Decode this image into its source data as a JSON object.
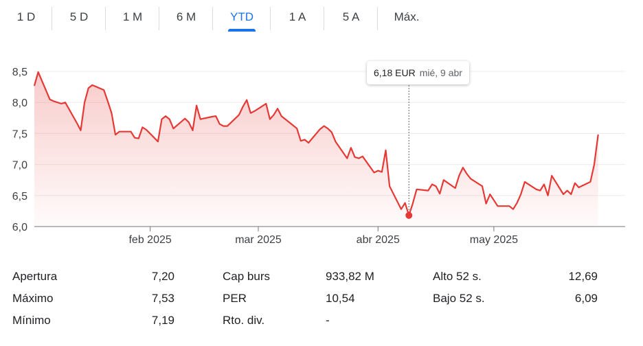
{
  "tabs": [
    {
      "label": "1 D",
      "active": false
    },
    {
      "label": "5 D",
      "active": false
    },
    {
      "label": "1 M",
      "active": false
    },
    {
      "label": "6 M",
      "active": false
    },
    {
      "label": "YTD",
      "active": true
    },
    {
      "label": "1 A",
      "active": false
    },
    {
      "label": "5 A",
      "active": false
    },
    {
      "label": "Máx.",
      "active": false
    }
  ],
  "tooltip": {
    "price": "6,18 EUR",
    "date": "mié, 9 abr"
  },
  "colors": {
    "line": "#e53935",
    "accent": "#1a73e8",
    "grid": "#ececec",
    "axis": "#70757a",
    "text": "#3c4043"
  },
  "stats": {
    "col1": [
      {
        "label": "Apertura",
        "value": "7,20"
      },
      {
        "label": "Máximo",
        "value": "7,53"
      },
      {
        "label": "Mínimo",
        "value": "7,19"
      }
    ],
    "col2": [
      {
        "label": "Cap burs",
        "value": "933,82 M"
      },
      {
        "label": "PER",
        "value": "10,54"
      },
      {
        "label": "Rto. div.",
        "value": "-"
      }
    ],
    "col3": [
      {
        "label": "Alto 52 s.",
        "value": "12,69"
      },
      {
        "label": "Bajo 52 s.",
        "value": "6,09"
      }
    ]
  },
  "chart_data": {
    "type": "area",
    "ylim": [
      6.0,
      8.5
    ],
    "yticks": [
      6.0,
      6.5,
      7.0,
      7.5,
      8.0,
      8.5
    ],
    "ytick_labels": [
      "6,0",
      "6,5",
      "7,0",
      "7,5",
      "8,0",
      "8,5"
    ],
    "xlim": [
      "2025-01-02",
      "2025-06-04"
    ],
    "xticks": [
      {
        "date": "2025-02-01",
        "label": "feb 2025"
      },
      {
        "date": "2025-03-01",
        "label": "mar 2025"
      },
      {
        "date": "2025-04-01",
        "label": "abr 2025"
      },
      {
        "date": "2025-05-01",
        "label": "may 2025"
      }
    ],
    "grid": true,
    "highlight": {
      "date": "2025-04-09",
      "value": 6.18
    },
    "series": [
      {
        "points": [
          [
            "2025-01-02",
            8.27
          ],
          [
            "2025-01-03",
            8.49
          ],
          [
            "2025-01-06",
            8.05
          ],
          [
            "2025-01-07",
            8.02
          ],
          [
            "2025-01-08",
            8.0
          ],
          [
            "2025-01-09",
            7.98
          ],
          [
            "2025-01-10",
            8.0
          ],
          [
            "2025-01-13",
            7.67
          ],
          [
            "2025-01-14",
            7.55
          ],
          [
            "2025-01-15",
            8.0
          ],
          [
            "2025-01-16",
            8.23
          ],
          [
            "2025-01-17",
            8.28
          ],
          [
            "2025-01-20",
            8.2
          ],
          [
            "2025-01-21",
            8.02
          ],
          [
            "2025-01-22",
            7.83
          ],
          [
            "2025-01-23",
            7.48
          ],
          [
            "2025-01-24",
            7.53
          ],
          [
            "2025-01-27",
            7.53
          ],
          [
            "2025-01-28",
            7.43
          ],
          [
            "2025-01-29",
            7.42
          ],
          [
            "2025-01-30",
            7.6
          ],
          [
            "2025-01-31",
            7.56
          ],
          [
            "2025-02-03",
            7.37
          ],
          [
            "2025-02-04",
            7.73
          ],
          [
            "2025-02-05",
            7.78
          ],
          [
            "2025-02-06",
            7.73
          ],
          [
            "2025-02-07",
            7.58
          ],
          [
            "2025-02-10",
            7.74
          ],
          [
            "2025-02-11",
            7.68
          ],
          [
            "2025-02-12",
            7.55
          ],
          [
            "2025-02-13",
            7.95
          ],
          [
            "2025-02-14",
            7.73
          ],
          [
            "2025-02-17",
            7.77
          ],
          [
            "2025-02-18",
            7.78
          ],
          [
            "2025-02-19",
            7.65
          ],
          [
            "2025-02-20",
            7.62
          ],
          [
            "2025-02-21",
            7.62
          ],
          [
            "2025-02-24",
            7.8
          ],
          [
            "2025-02-25",
            7.93
          ],
          [
            "2025-02-26",
            8.04
          ],
          [
            "2025-02-27",
            7.83
          ],
          [
            "2025-02-28",
            7.86
          ],
          [
            "2025-03-03",
            7.98
          ],
          [
            "2025-03-04",
            7.73
          ],
          [
            "2025-03-05",
            7.8
          ],
          [
            "2025-03-06",
            7.9
          ],
          [
            "2025-03-07",
            7.78
          ],
          [
            "2025-03-10",
            7.63
          ],
          [
            "2025-03-11",
            7.58
          ],
          [
            "2025-03-12",
            7.38
          ],
          [
            "2025-03-13",
            7.4
          ],
          [
            "2025-03-14",
            7.35
          ],
          [
            "2025-03-17",
            7.57
          ],
          [
            "2025-03-18",
            7.62
          ],
          [
            "2025-03-19",
            7.58
          ],
          [
            "2025-03-20",
            7.52
          ],
          [
            "2025-03-21",
            7.37
          ],
          [
            "2025-03-24",
            7.1
          ],
          [
            "2025-03-25",
            7.27
          ],
          [
            "2025-03-26",
            7.12
          ],
          [
            "2025-03-27",
            7.1
          ],
          [
            "2025-03-28",
            7.13
          ],
          [
            "2025-03-31",
            6.87
          ],
          [
            "2025-04-01",
            6.9
          ],
          [
            "2025-04-02",
            6.88
          ],
          [
            "2025-04-03",
            7.23
          ],
          [
            "2025-04-04",
            6.65
          ],
          [
            "2025-04-07",
            6.28
          ],
          [
            "2025-04-08",
            6.38
          ],
          [
            "2025-04-09",
            6.18
          ],
          [
            "2025-04-10",
            6.37
          ],
          [
            "2025-04-11",
            6.6
          ],
          [
            "2025-04-14",
            6.58
          ],
          [
            "2025-04-15",
            6.68
          ],
          [
            "2025-04-16",
            6.65
          ],
          [
            "2025-04-17",
            6.53
          ],
          [
            "2025-04-18",
            6.75
          ],
          [
            "2025-04-21",
            6.62
          ],
          [
            "2025-04-22",
            6.82
          ],
          [
            "2025-04-23",
            6.95
          ],
          [
            "2025-04-24",
            6.85
          ],
          [
            "2025-04-25",
            6.77
          ],
          [
            "2025-04-28",
            6.65
          ],
          [
            "2025-04-29",
            6.37
          ],
          [
            "2025-04-30",
            6.52
          ],
          [
            "2025-05-02",
            6.33
          ],
          [
            "2025-05-05",
            6.33
          ],
          [
            "2025-05-06",
            6.28
          ],
          [
            "2025-05-07",
            6.38
          ],
          [
            "2025-05-08",
            6.52
          ],
          [
            "2025-05-09",
            6.72
          ],
          [
            "2025-05-12",
            6.6
          ],
          [
            "2025-05-13",
            6.58
          ],
          [
            "2025-05-14",
            6.68
          ],
          [
            "2025-05-15",
            6.5
          ],
          [
            "2025-05-16",
            6.82
          ],
          [
            "2025-05-19",
            6.52
          ],
          [
            "2025-05-20",
            6.58
          ],
          [
            "2025-05-21",
            6.52
          ],
          [
            "2025-05-22",
            6.7
          ],
          [
            "2025-05-23",
            6.63
          ],
          [
            "2025-05-26",
            6.72
          ],
          [
            "2025-05-27",
            7.0
          ],
          [
            "2025-05-28",
            7.48
          ]
        ]
      }
    ]
  }
}
